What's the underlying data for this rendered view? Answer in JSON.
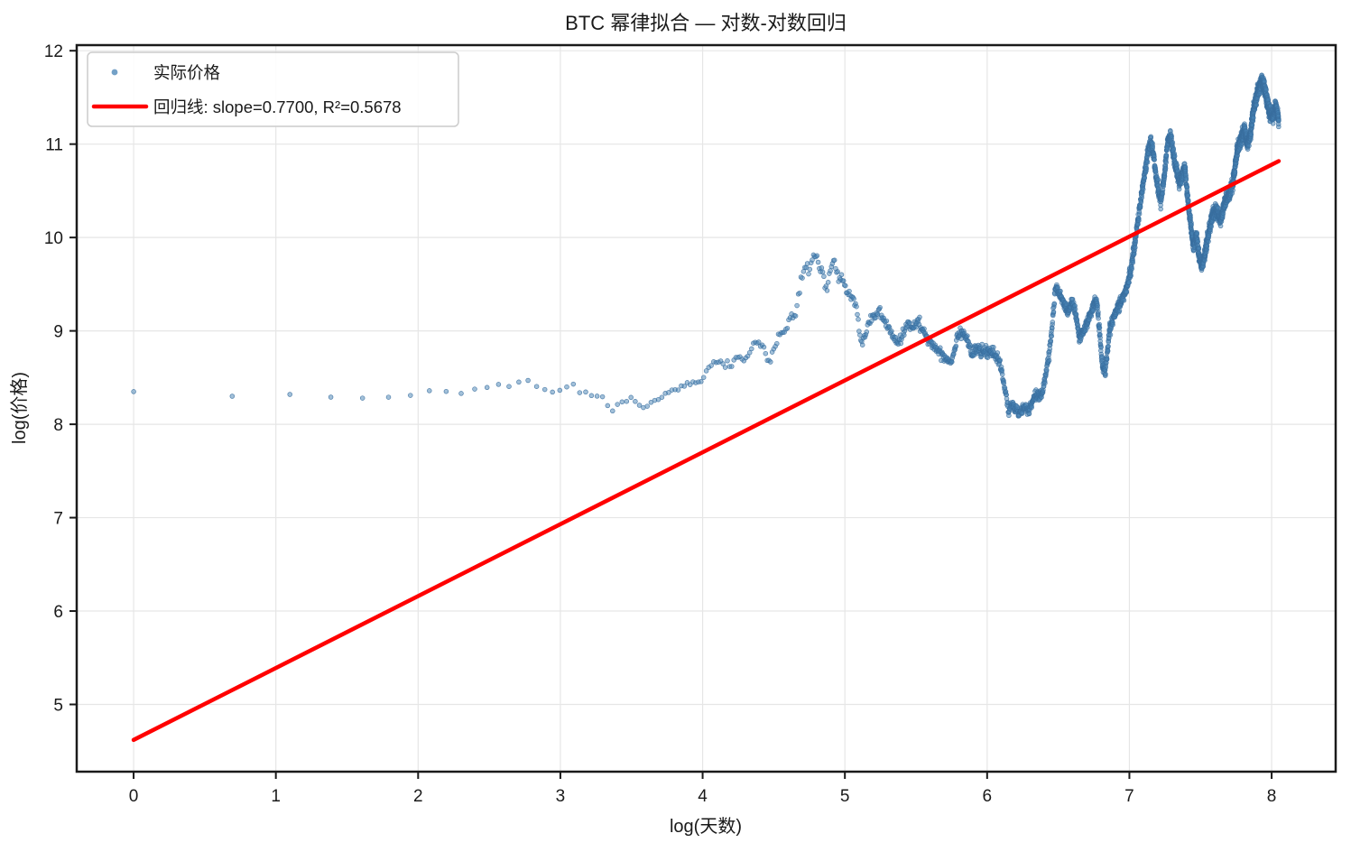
{
  "window": {
    "title": "BTC 幂律拟合 — 对数-对数回归"
  },
  "legend": {
    "position": "upper left",
    "items": [
      {
        "label": "实际价格",
        "marker": "dot"
      },
      {
        "label": "回归线: slope=0.7700, R²=0.5678",
        "marker": "line"
      }
    ]
  },
  "stats": {
    "slope": "0.7700",
    "r_squared": "0.5678"
  },
  "chart_data": {
    "type": "scatter",
    "title": "BTC 幂律拟合 — 对数-对数回归",
    "xlabel": "log(天数)",
    "ylabel": "log(价格)",
    "xlim": [
      -0.4,
      8.45
    ],
    "ylim": [
      4.28,
      12.06
    ],
    "xticks": [
      0,
      1,
      2,
      3,
      4,
      5,
      6,
      7,
      8
    ],
    "yticks": [
      5,
      6,
      7,
      8,
      9,
      10,
      11,
      12
    ],
    "grid": true,
    "legend_position": "upper left",
    "colors": {
      "scatter": "#4682b4",
      "scatter_edge": "#3a6f9f",
      "regression": "#ff0000",
      "grid": "#e6e6e6",
      "spine": "#1a1a1a",
      "legend_border": "#cccccc"
    },
    "series": [
      {
        "name": "实际价格",
        "type": "scatter",
        "x_is_log_of_day": true,
        "day_min": 1,
        "day_max": 3133,
        "anchors": [
          [
            0.0,
            8.35
          ],
          [
            0.69,
            8.3
          ],
          [
            1.1,
            8.32
          ],
          [
            1.39,
            8.29
          ],
          [
            1.61,
            8.28
          ],
          [
            1.79,
            8.29
          ],
          [
            1.95,
            8.31
          ],
          [
            2.08,
            8.36
          ],
          [
            2.2,
            8.36
          ],
          [
            2.3,
            8.37
          ],
          [
            2.4,
            8.37
          ],
          [
            2.48,
            8.38
          ],
          [
            2.56,
            8.41
          ],
          [
            2.64,
            8.4
          ],
          [
            2.71,
            8.44
          ],
          [
            2.77,
            8.46
          ],
          [
            2.83,
            8.4
          ],
          [
            2.89,
            8.39
          ],
          [
            2.94,
            8.31
          ],
          [
            2.99,
            8.37
          ],
          [
            3.04,
            8.41
          ],
          [
            3.09,
            8.44
          ],
          [
            3.13,
            8.33
          ],
          [
            3.17,
            8.35
          ],
          [
            3.21,
            8.31
          ],
          [
            3.25,
            8.32
          ],
          [
            3.29,
            8.3
          ],
          [
            3.32,
            8.29
          ],
          [
            3.35,
            8.06
          ],
          [
            3.38,
            8.21
          ],
          [
            3.42,
            8.21
          ],
          [
            3.45,
            8.22
          ],
          [
            3.48,
            8.3
          ],
          [
            3.51,
            8.26
          ],
          [
            3.54,
            8.24
          ],
          [
            3.57,
            8.17
          ],
          [
            3.6,
            8.18
          ],
          [
            3.63,
            8.2
          ],
          [
            3.66,
            8.24
          ],
          [
            3.69,
            8.28
          ],
          [
            3.72,
            8.31
          ],
          [
            3.75,
            8.35
          ],
          [
            3.78,
            8.37
          ],
          [
            3.81,
            8.37
          ],
          [
            3.84,
            8.39
          ],
          [
            3.87,
            8.41
          ],
          [
            3.9,
            8.45
          ],
          [
            3.93,
            8.45
          ],
          [
            3.96,
            8.44
          ],
          [
            4.0,
            8.52
          ],
          [
            4.05,
            8.6
          ],
          [
            4.1,
            8.68
          ],
          [
            4.15,
            8.64
          ],
          [
            4.2,
            8.62
          ],
          [
            4.25,
            8.69
          ],
          [
            4.3,
            8.72
          ],
          [
            4.33,
            8.77
          ],
          [
            4.36,
            8.91
          ],
          [
            4.4,
            8.87
          ],
          [
            4.44,
            8.76
          ],
          [
            4.47,
            8.65
          ],
          [
            4.5,
            8.79
          ],
          [
            4.54,
            9.0
          ],
          [
            4.58,
            8.96
          ],
          [
            4.62,
            9.18
          ],
          [
            4.65,
            9.13
          ],
          [
            4.67,
            9.35
          ],
          [
            4.69,
            9.5
          ],
          [
            4.72,
            9.7
          ],
          [
            4.75,
            9.64
          ],
          [
            4.78,
            9.85
          ],
          [
            4.8,
            9.8
          ],
          [
            4.82,
            9.7
          ],
          [
            4.85,
            9.55
          ],
          [
            4.87,
            9.44
          ],
          [
            4.9,
            9.66
          ],
          [
            4.92,
            9.74
          ],
          [
            4.95,
            9.6
          ],
          [
            4.98,
            9.55
          ],
          [
            5.02,
            9.42
          ],
          [
            5.05,
            9.35
          ],
          [
            5.08,
            9.26
          ],
          [
            5.1,
            9.0
          ],
          [
            5.12,
            8.84
          ],
          [
            5.15,
            9.0
          ],
          [
            5.18,
            9.1
          ],
          [
            5.21,
            9.18
          ],
          [
            5.24,
            9.22
          ],
          [
            5.27,
            9.12
          ],
          [
            5.3,
            9.04
          ],
          [
            5.33,
            8.96
          ],
          [
            5.36,
            8.88
          ],
          [
            5.39,
            8.9
          ],
          [
            5.42,
            9.02
          ],
          [
            5.45,
            9.08
          ],
          [
            5.48,
            9.06
          ],
          [
            5.51,
            9.12
          ],
          [
            5.55,
            9.0
          ],
          [
            5.58,
            8.9
          ],
          [
            5.62,
            8.85
          ],
          [
            5.66,
            8.78
          ],
          [
            5.7,
            8.72
          ],
          [
            5.75,
            8.67
          ],
          [
            5.79,
            8.95
          ],
          [
            5.83,
            9.0
          ],
          [
            5.86,
            8.9
          ],
          [
            5.89,
            8.76
          ],
          [
            5.92,
            8.8
          ],
          [
            5.96,
            8.78
          ],
          [
            6.0,
            8.76
          ],
          [
            6.04,
            8.78
          ],
          [
            6.08,
            8.7
          ],
          [
            6.11,
            8.5
          ],
          [
            6.13,
            8.35
          ],
          [
            6.15,
            8.12
          ],
          [
            6.17,
            8.22
          ],
          [
            6.2,
            8.16
          ],
          [
            6.23,
            8.12
          ],
          [
            6.26,
            8.18
          ],
          [
            6.29,
            8.14
          ],
          [
            6.32,
            8.25
          ],
          [
            6.35,
            8.32
          ],
          [
            6.38,
            8.3
          ],
          [
            6.41,
            8.52
          ],
          [
            6.44,
            8.8
          ],
          [
            6.46,
            9.1
          ],
          [
            6.48,
            9.45
          ],
          [
            6.51,
            9.4
          ],
          [
            6.54,
            9.28
          ],
          [
            6.57,
            9.2
          ],
          [
            6.6,
            9.32
          ],
          [
            6.63,
            9.1
          ],
          [
            6.65,
            8.92
          ],
          [
            6.68,
            9.0
          ],
          [
            6.71,
            9.12
          ],
          [
            6.74,
            9.25
          ],
          [
            6.77,
            9.33
          ],
          [
            6.79,
            9.0
          ],
          [
            6.81,
            8.62
          ],
          [
            6.83,
            8.56
          ],
          [
            6.86,
            9.0
          ],
          [
            6.89,
            9.15
          ],
          [
            6.92,
            9.25
          ],
          [
            6.95,
            9.35
          ],
          [
            6.98,
            9.45
          ],
          [
            7.01,
            9.65
          ],
          [
            7.04,
            9.95
          ],
          [
            7.07,
            10.3
          ],
          [
            7.1,
            10.6
          ],
          [
            7.13,
            10.92
          ],
          [
            7.15,
            11.02
          ],
          [
            7.17,
            10.88
          ],
          [
            7.19,
            10.62
          ],
          [
            7.22,
            10.38
          ],
          [
            7.25,
            10.72
          ],
          [
            7.27,
            11.05
          ],
          [
            7.29,
            11.08
          ],
          [
            7.31,
            10.88
          ],
          [
            7.33,
            10.72
          ],
          [
            7.35,
            10.58
          ],
          [
            7.37,
            10.66
          ],
          [
            7.39,
            10.76
          ],
          [
            7.41,
            10.42
          ],
          [
            7.43,
            10.15
          ],
          [
            7.45,
            9.92
          ],
          [
            7.47,
            10.02
          ],
          [
            7.49,
            9.8
          ],
          [
            7.51,
            9.7
          ],
          [
            7.53,
            9.82
          ],
          [
            7.55,
            10.0
          ],
          [
            7.58,
            10.22
          ],
          [
            7.61,
            10.3
          ],
          [
            7.64,
            10.18
          ],
          [
            7.67,
            10.38
          ],
          [
            7.7,
            10.45
          ],
          [
            7.73,
            10.6
          ],
          [
            7.76,
            10.95
          ],
          [
            7.79,
            11.08
          ],
          [
            7.81,
            11.15
          ],
          [
            7.83,
            11.0
          ],
          [
            7.85,
            11.1
          ],
          [
            7.87,
            11.35
          ],
          [
            7.9,
            11.55
          ],
          [
            7.93,
            11.68
          ],
          [
            7.95,
            11.6
          ],
          [
            7.97,
            11.45
          ],
          [
            7.99,
            11.32
          ],
          [
            8.01,
            11.3
          ],
          [
            8.03,
            11.4
          ],
          [
            8.05,
            11.25
          ]
        ]
      },
      {
        "name": "回归线: slope=0.7700, R²=0.5678",
        "type": "line",
        "slope": 0.77,
        "intercept": 4.62,
        "x_range": [
          0,
          8.05
        ]
      }
    ]
  }
}
